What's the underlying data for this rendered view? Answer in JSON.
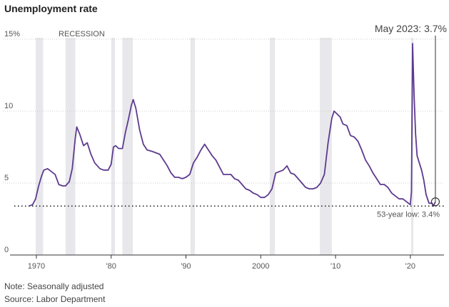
{
  "title": "Unemployment rate",
  "notes": {
    "note": "Note: Seasonally adjusted",
    "source": "Source: Labor Department"
  },
  "colors": {
    "line": "#5d3a8e",
    "recession": "#e8e8ec",
    "grid": "#cccccc",
    "axis": "#333333",
    "text": "#555555"
  },
  "chart_data": {
    "type": "line",
    "title": "Unemployment rate",
    "xlabel": "",
    "ylabel": "",
    "xlim": [
      1968.0,
      2024.5
    ],
    "ylim": [
      0,
      15
    ],
    "grid": true,
    "y_ticks": [
      {
        "value": 0,
        "label": "0"
      },
      {
        "value": 5,
        "label": "5"
      },
      {
        "value": 10,
        "label": "10"
      },
      {
        "value": 15,
        "label": "15%"
      }
    ],
    "x_ticks": [
      {
        "value": 1970,
        "label": "1970"
      },
      {
        "value": 1980,
        "label": "'80"
      },
      {
        "value": 1990,
        "label": "'90"
      },
      {
        "value": 2000,
        "label": "2000"
      },
      {
        "value": 2010,
        "label": "'10"
      },
      {
        "value": 2020,
        "label": "'20"
      }
    ],
    "recession_label": "RECESSION",
    "recessions": [
      [
        1969.9,
        1970.9
      ],
      [
        1973.9,
        1975.2
      ],
      [
        1980.0,
        1980.5
      ],
      [
        1981.5,
        1982.9
      ],
      [
        1990.6,
        1991.2
      ],
      [
        2001.2,
        2001.9
      ],
      [
        2007.9,
        2009.5
      ],
      [
        2020.1,
        2020.4
      ]
    ],
    "series": [
      {
        "x": [
          1969.0,
          1969.5,
          1969.9,
          1970.3,
          1970.7,
          1971.0,
          1971.5,
          1972.0,
          1972.5,
          1973.0,
          1973.5,
          1973.9,
          1974.4,
          1974.8,
          1975.2,
          1975.4,
          1975.8,
          1976.3,
          1976.8,
          1977.3,
          1977.8,
          1978.5,
          1979.0,
          1979.6,
          1980.0,
          1980.3,
          1980.6,
          1981.0,
          1981.5,
          1981.9,
          1982.3,
          1982.7,
          1982.95,
          1983.3,
          1983.8,
          1984.3,
          1984.8,
          1985.5,
          1986.0,
          1986.5,
          1987.0,
          1987.5,
          1988.0,
          1988.5,
          1989.0,
          1989.5,
          1990.0,
          1990.5,
          1991.0,
          1991.5,
          1992.0,
          1992.5,
          1993.0,
          1993.5,
          1994.0,
          1994.5,
          1995.0,
          1995.5,
          1996.0,
          1996.5,
          1997.0,
          1997.5,
          1998.0,
          1998.5,
          1999.0,
          1999.5,
          2000.0,
          2000.5,
          2001.0,
          2001.5,
          2002.0,
          2002.5,
          2003.0,
          2003.5,
          2004.0,
          2004.5,
          2005.0,
          2005.5,
          2006.0,
          2006.5,
          2007.0,
          2007.5,
          2008.0,
          2008.5,
          2009.0,
          2009.5,
          2009.8,
          2010.2,
          2010.6,
          2011.0,
          2011.5,
          2012.0,
          2012.5,
          2013.0,
          2013.5,
          2014.0,
          2014.5,
          2015.0,
          2015.5,
          2016.0,
          2016.5,
          2017.0,
          2017.5,
          2018.0,
          2018.5,
          2019.0,
          2019.5,
          2020.0,
          2020.15,
          2020.3,
          2020.5,
          2020.7,
          2020.9,
          2021.2,
          2021.5,
          2021.8,
          2022.1,
          2022.5,
          2022.9,
          2023.1,
          2023.35
        ],
        "y": [
          3.4,
          3.5,
          3.9,
          4.8,
          5.5,
          5.9,
          6.0,
          5.8,
          5.6,
          4.9,
          4.8,
          4.8,
          5.1,
          6.0,
          8.1,
          8.9,
          8.4,
          7.6,
          7.8,
          7.0,
          6.4,
          6.0,
          5.9,
          5.9,
          6.3,
          7.5,
          7.6,
          7.4,
          7.4,
          8.5,
          9.4,
          10.4,
          10.8,
          10.2,
          8.7,
          7.7,
          7.3,
          7.2,
          7.1,
          7.0,
          6.6,
          6.2,
          5.7,
          5.4,
          5.4,
          5.3,
          5.4,
          5.6,
          6.4,
          6.8,
          7.3,
          7.7,
          7.3,
          6.9,
          6.6,
          6.1,
          5.6,
          5.6,
          5.6,
          5.3,
          5.2,
          4.9,
          4.6,
          4.5,
          4.3,
          4.2,
          4.0,
          4.0,
          4.2,
          4.6,
          5.7,
          5.8,
          5.9,
          6.2,
          5.7,
          5.6,
          5.3,
          5.0,
          4.7,
          4.6,
          4.6,
          4.7,
          5.0,
          5.6,
          7.8,
          9.5,
          10.0,
          9.8,
          9.6,
          9.1,
          9.0,
          8.3,
          8.2,
          7.9,
          7.3,
          6.6,
          6.2,
          5.7,
          5.3,
          4.9,
          4.9,
          4.7,
          4.3,
          4.1,
          3.9,
          3.9,
          3.7,
          3.5,
          4.4,
          14.7,
          11.1,
          8.4,
          6.9,
          6.4,
          5.9,
          5.2,
          4.2,
          3.6,
          3.6,
          3.4,
          3.7
        ]
      }
    ],
    "annotations": {
      "callout": "May 2023: 3.7%",
      "callout_x": 2023.35,
      "callout_y": 3.7,
      "low_label": "53-year low: 3.4%",
      "low_value": 3.4
    }
  }
}
